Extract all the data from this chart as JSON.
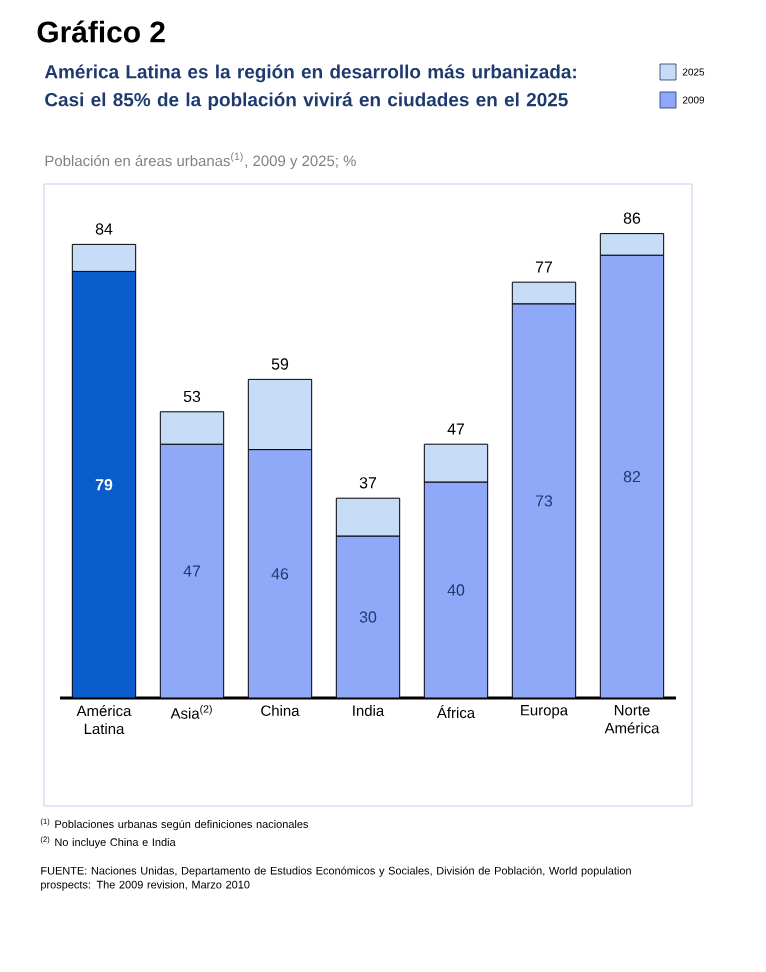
{
  "chart_data": {
    "type": "bar",
    "stacked": true,
    "title": "Gráfico 2",
    "subtitle": "América Latina es la región en desarrollo más urbanizada: Casi el 85% de la población vivirá en ciudades en el 2025",
    "ylabel": "Población en áreas urbanas$^{(1)}$, 2009 y 2025; %",
    "categories": [
      "América Latina",
      "Asia$^{(2)}$",
      "China",
      "India",
      "África",
      "Europa",
      "Norte América"
    ],
    "series": [
      {
        "name": "2009",
        "color": "#8fa9f8",
        "colors": [
          "#0a5ccc",
          "#8fa9f8",
          "#8fa9f8",
          "#8fa9f8",
          "#8fa9f8",
          "#8fa9f8",
          "#8fa9f8"
        ],
        "values": [
          79,
          47,
          46,
          30,
          40,
          73,
          82
        ],
        "value_labels": [
          "79",
          "47",
          "46",
          "30",
          "40",
          "73",
          "82"
        ]
      },
      {
        "name": "2025",
        "color": "#c6dcf7",
        "values": [
          5,
          6,
          13,
          7,
          7,
          4,
          4
        ]
      }
    ],
    "totals": [
      "84",
      "53",
      "59",
      "37",
      "47",
      "77",
      "86"
    ],
    "tick_labels": "x",
    "legend": "top right",
    "annotations": [
      "$^{(1)}$ Poblaciones urbanas según definiciones nacionales",
      "$^{(2)}$ No incluye China e India",
      "FUENTE: Naciones Unidas, Departamento de Estudios Económicos y Sociales, División de Población, World population prospects: The 2009 revision, Marzo 2010"
    ]
  }
}
